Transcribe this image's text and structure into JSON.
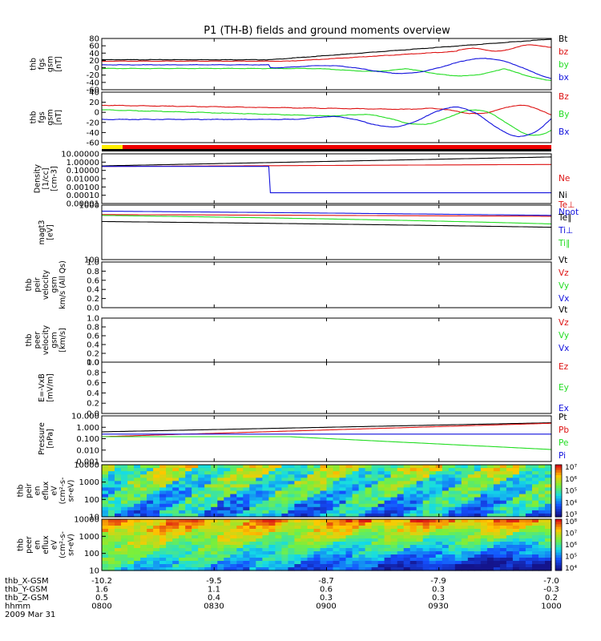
{
  "title": "P1 (TH-B) fields and ground moments overview",
  "colors": {
    "black": "#000000",
    "red": "#dd1111",
    "green": "#22dd22",
    "blue": "#1111dd"
  },
  "panels": [
    {
      "id": "fgs-gsm",
      "ylabel": [
        "thb",
        "fgs",
        "gsm",
        "[nT]"
      ],
      "yticks": [
        "80",
        "60",
        "40",
        "20",
        "0",
        "-20",
        "-40",
        "-60"
      ],
      "ylim": [
        -60,
        80
      ],
      "scale": "linear",
      "legend": [
        {
          "text": "Bt",
          "color": "black"
        },
        {
          "text": "bz",
          "color": "red"
        },
        {
          "text": "by",
          "color": "green"
        },
        {
          "text": "bx",
          "color": "blue"
        }
      ]
    },
    {
      "id": "fgs-gsm-2",
      "ylabel": [
        "thb",
        "fgs",
        "gsm",
        "[nT]"
      ],
      "yticks": [
        "40",
        "20",
        "0",
        "-20",
        "-40",
        "-60"
      ],
      "ylim": [
        -60,
        40
      ],
      "scale": "linear",
      "legend": [
        {
          "text": "Bz",
          "color": "red"
        },
        {
          "text": "By",
          "color": "green"
        },
        {
          "text": "Bx",
          "color": "blue"
        }
      ]
    },
    {
      "id": "density",
      "ylabel": [
        "Density",
        "[1/cc]",
        "[cm-3]"
      ],
      "yticks": [
        "10.00000",
        "1.00000",
        "0.10000",
        "0.01000",
        "0.00100",
        "0.00010",
        "0.00001"
      ],
      "ylim": [
        1e-05,
        10
      ],
      "scale": "log",
      "legend": [
        {
          "text": "Ne",
          "color": "red"
        },
        {
          "text": "Ni",
          "color": "black"
        },
        {
          "text": "Npot",
          "color": "blue"
        }
      ]
    },
    {
      "id": "temperature",
      "ylabel": [
        "magt3",
        "[eV]"
      ],
      "yticks": [
        "1000",
        "100"
      ],
      "ylim": [
        100,
        10000
      ],
      "scale": "log",
      "legend": [
        {
          "text": "Te⊥",
          "color": "red"
        },
        {
          "text": "Te∥",
          "color": "black"
        },
        {
          "text": "Ti⊥",
          "color": "blue"
        },
        {
          "text": "Ti∥",
          "color": "green"
        }
      ]
    },
    {
      "id": "ion-velocity",
      "ylabel": [
        "thb",
        "peir",
        "velocity",
        "gsm",
        "km/s (All Qs)"
      ],
      "yticks": [
        "1.0",
        "0.8",
        "0.6",
        "0.4",
        "0.2",
        "0.0"
      ],
      "ylim": [
        0,
        1
      ],
      "scale": "linear",
      "legend": [
        {
          "text": "Vt",
          "color": "black"
        },
        {
          "text": "Vz",
          "color": "red"
        },
        {
          "text": "Vy",
          "color": "green"
        },
        {
          "text": "Vx",
          "color": "blue"
        }
      ]
    },
    {
      "id": "electron-velocity",
      "ylabel": [
        "thb",
        "peer",
        "velocity",
        "gsm",
        "[km/s]"
      ],
      "yticks": [
        "1.0",
        "0.8",
        "0.6",
        "0.4",
        "0.2",
        "0.0"
      ],
      "ylim": [
        0,
        1
      ],
      "scale": "linear",
      "legend": [
        {
          "text": "Vt",
          "color": "black"
        },
        {
          "text": "Vz",
          "color": "red"
        },
        {
          "text": "Vy",
          "color": "green"
        },
        {
          "text": "Vx",
          "color": "blue"
        }
      ]
    },
    {
      "id": "efield",
      "ylabel": [
        "E=-VxB",
        "[mV/m]"
      ],
      "yticks": [
        "1.0",
        "0.8",
        "0.6",
        "0.4",
        "0.2",
        "0.0"
      ],
      "ylim": [
        0,
        1
      ],
      "scale": "linear",
      "legend": [
        {
          "text": "Ez",
          "color": "red"
        },
        {
          "text": "Ey",
          "color": "green"
        },
        {
          "text": "Ex",
          "color": "blue"
        }
      ]
    },
    {
      "id": "pressure",
      "ylabel": [
        "Pressure",
        "[nPa]"
      ],
      "yticks": [
        "10.000",
        "1.000",
        "0.100",
        "0.010",
        "0.001"
      ],
      "ylim": [
        0.001,
        10
      ],
      "scale": "log",
      "legend": [
        {
          "text": "Pt",
          "color": "black"
        },
        {
          "text": "Pb",
          "color": "red"
        },
        {
          "text": "Pe",
          "color": "green"
        },
        {
          "text": "Pi",
          "color": "blue"
        }
      ]
    },
    {
      "id": "ion-spectrogram",
      "ylabel": [
        "thb",
        "peir",
        "en",
        "eflux",
        "eV",
        "(cm²-s-",
        "sr-eV)"
      ],
      "yticks": [
        "10000",
        "1000",
        "100",
        "10"
      ],
      "ylim": [
        10,
        20000
      ],
      "scale": "log",
      "colorbar": [
        "10⁷",
        "10⁶",
        "10⁵",
        "10⁴",
        "10³"
      ]
    },
    {
      "id": "electron-spectrogram",
      "ylabel": [
        "thb",
        "peer",
        "en",
        "eflux",
        "eV",
        "(cm²-s-",
        "sr-eV)"
      ],
      "yticks": [
        "10000",
        "1000",
        "100",
        "10"
      ],
      "ylim": [
        10,
        20000
      ],
      "scale": "log",
      "colorbar": [
        "10⁸",
        "10⁷",
        "10⁶",
        "10⁵",
        "10⁴"
      ]
    }
  ],
  "footer": {
    "rows": [
      {
        "label": "thb_X-GSM",
        "values": [
          "-10.2",
          "-9.5",
          "-8.7",
          "-7.9",
          "-7.0"
        ]
      },
      {
        "label": "thb_Y-GSM",
        "values": [
          "1.6",
          "1.1",
          "0.6",
          "0.3",
          "-0.3"
        ]
      },
      {
        "label": "thb_Z-GSM",
        "values": [
          "0.5",
          "0.4",
          "0.3",
          "0.3",
          "0.2"
        ]
      },
      {
        "label": "hhmm",
        "values": [
          "0800",
          "0830",
          "0900",
          "0930",
          "1000"
        ]
      }
    ],
    "date": "2009 Mar 31"
  },
  "chart_data": {
    "type": "line",
    "title": "P1 (TH-B) fields and ground moments overview",
    "x_time_ticks": [
      "0800",
      "0830",
      "0900",
      "0930",
      "1000"
    ],
    "series": [
      {
        "name": "Bt",
        "panel": "fgs-gsm",
        "x": [
          "0800",
          "0830",
          "0900",
          "0930",
          "1000"
        ],
        "values": [
          22,
          22,
          28,
          45,
          78
        ]
      },
      {
        "name": "bz",
        "panel": "fgs-gsm",
        "x": [
          "0800",
          "0830",
          "0900",
          "0930",
          "1000"
        ],
        "values": [
          18,
          20,
          28,
          40,
          62
        ]
      },
      {
        "name": "by",
        "panel": "fgs-gsm",
        "x": [
          "0800",
          "0830",
          "0900",
          "0930",
          "1000"
        ],
        "values": [
          -2,
          -2,
          -2,
          -25,
          -35
        ]
      },
      {
        "name": "bx",
        "panel": "fgs-gsm",
        "x": [
          "0800",
          "0830",
          "0900",
          "0930",
          "1000"
        ],
        "values": [
          8,
          10,
          0,
          20,
          30
        ]
      },
      {
        "name": "Ne",
        "panel": "density",
        "x": [
          "0800",
          "0830",
          "0900",
          "0930",
          "1000"
        ],
        "values": [
          0.3,
          0.35,
          0.5,
          0.6,
          0.4
        ]
      },
      {
        "name": "Ni",
        "panel": "density",
        "x": [
          "0800",
          "0830",
          "0900",
          "0930",
          "1000"
        ],
        "values": [
          0.35,
          0.4,
          0.9,
          1.5,
          4.0
        ]
      },
      {
        "name": "Npot",
        "panel": "density",
        "x": [
          "0800",
          "0830",
          "0900",
          "0930",
          "1000"
        ],
        "values": [
          0.3,
          0.3,
          0.0002,
          0.0002,
          0.0003
        ]
      },
      {
        "name": "Pt",
        "panel": "pressure",
        "x": [
          "0800",
          "0830",
          "0900",
          "0930",
          "1000"
        ],
        "values": [
          0.4,
          0.6,
          0.9,
          1.4,
          2.5
        ]
      },
      {
        "name": "Pb",
        "panel": "pressure",
        "x": [
          "0800",
          "0830",
          "0900",
          "0930",
          "1000"
        ],
        "values": [
          0.15,
          0.2,
          0.35,
          0.8,
          2.3
        ]
      },
      {
        "name": "Pe",
        "panel": "pressure",
        "x": [
          "0800",
          "0830",
          "0900",
          "0930",
          "1000"
        ],
        "values": [
          0.12,
          0.2,
          0.15,
          0.05,
          0.01
        ]
      },
      {
        "name": "Pi",
        "panel": "pressure",
        "x": [
          "0800",
          "0830",
          "0900",
          "0930",
          "1000"
        ],
        "values": [
          0.2,
          0.25,
          0.3,
          0.3,
          0.3
        ]
      }
    ]
  }
}
